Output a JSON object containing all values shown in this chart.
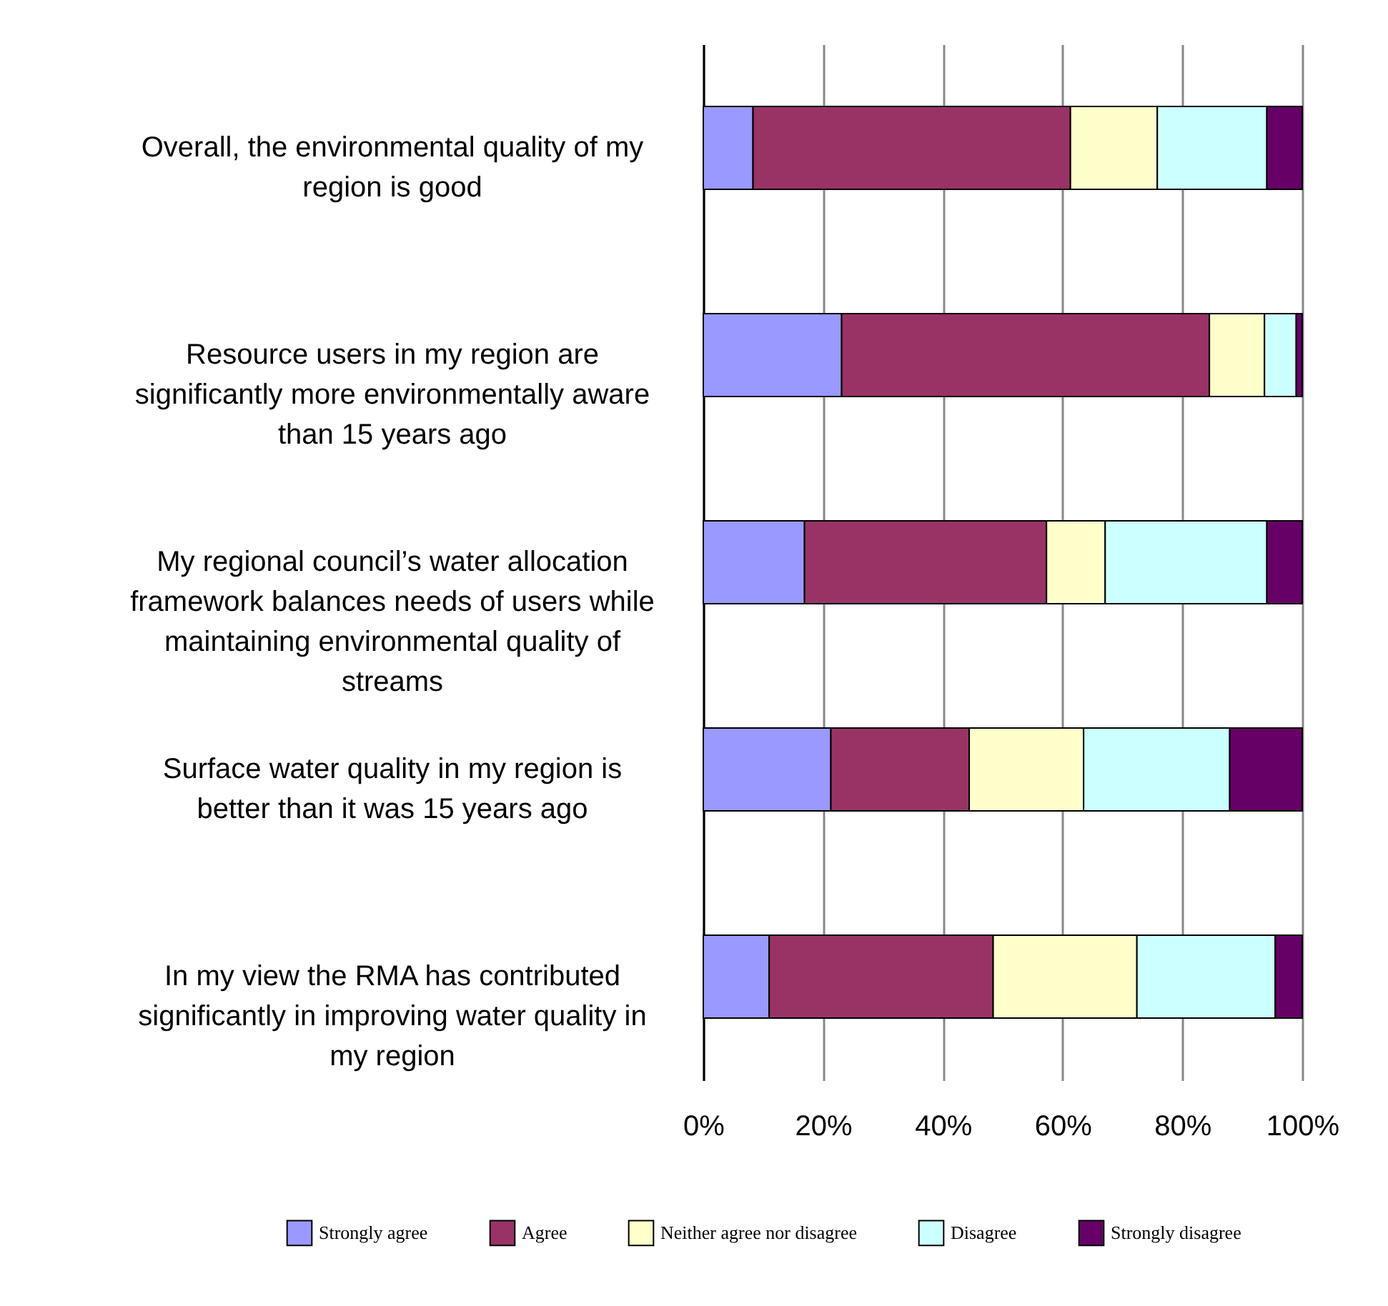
{
  "chart_data": {
    "type": "bar",
    "orientation": "horizontal",
    "stacked": true,
    "categories": [
      "Overall, the environmental quality of my region is good",
      "Resource users in my region are significantly more environmentally aware than 15 years ago",
      "My regional council’s water allocation framework balances needs of users while maintaining environmental quality of streams",
      "Surface water quality in my region is better than it was 15 years ago",
      "In my view the RMA has contributed significantly in improving water quality in my region"
    ],
    "series": [
      {
        "name": "Strongly agree",
        "color": "#9999ff",
        "values": [
          8.3,
          23.1,
          16.9,
          21.3,
          11.0
        ]
      },
      {
        "name": "Agree",
        "color": "#993366",
        "values": [
          53.0,
          61.4,
          40.4,
          23.1,
          37.4
        ]
      },
      {
        "name": "Neither agree nor disagree",
        "color": "#ffffcc",
        "values": [
          14.5,
          9.2,
          9.8,
          19.1,
          24.0
        ]
      },
      {
        "name": "Disagree",
        "color": "#ccffff",
        "values": [
          18.3,
          5.3,
          27.0,
          24.4,
          23.1
        ]
      },
      {
        "name": "Strongly disagree",
        "color": "#660066",
        "values": [
          5.9,
          1.0,
          5.9,
          12.1,
          4.5
        ]
      }
    ],
    "xlim": [
      0,
      100
    ],
    "xticks": [
      {
        "value": 0,
        "label": "0%"
      },
      {
        "value": 20,
        "label": "20%"
      },
      {
        "value": 40,
        "label": "40%"
      },
      {
        "value": 60,
        "label": "60%"
      },
      {
        "value": 80,
        "label": "80%"
      },
      {
        "value": 100,
        "label": "100%"
      }
    ],
    "grid": "x",
    "legend": "bottom"
  }
}
